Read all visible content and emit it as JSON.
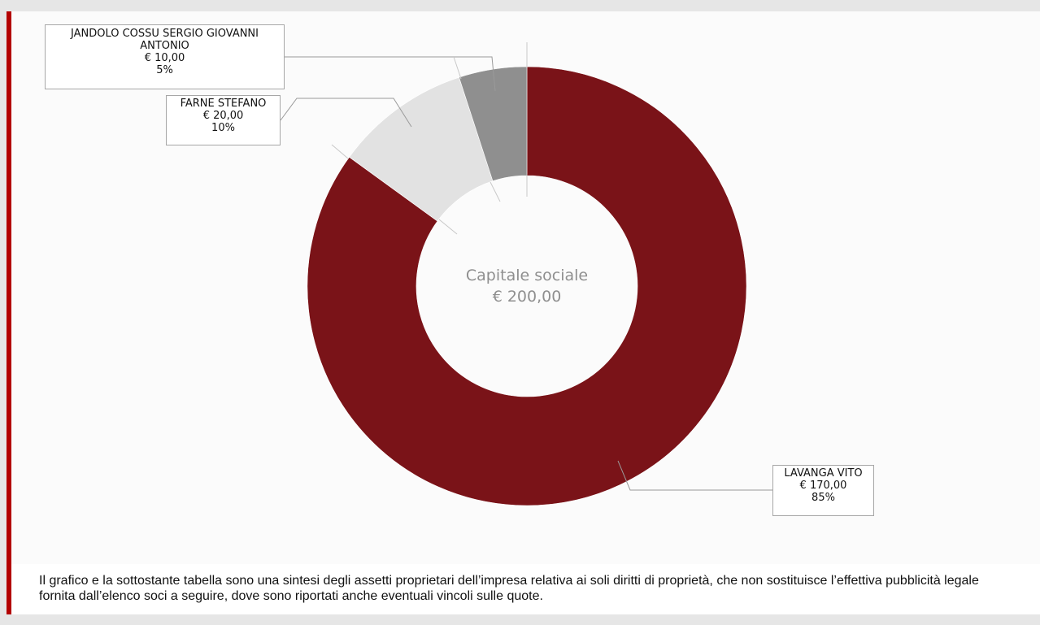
{
  "chart_data": {
    "type": "pie",
    "center_label": {
      "title": "Capitale sociale",
      "total": "€ 200,00"
    },
    "slices": [
      {
        "name": "LAVANGA VITO",
        "amount_text": "€ 170,00",
        "percent_text": "85%",
        "value": 170,
        "color": "#7a1318"
      },
      {
        "name": "FARNE STEFANO",
        "amount_text": "€ 20,00",
        "percent_text": "10%",
        "value": 20,
        "color": "#e2e2e2"
      },
      {
        "name": "JANDOLO COSSU SERGIO GIOVANNI ANTONIO",
        "amount_text": "€ 10,00",
        "percent_text": "5%",
        "value": 10,
        "color": "#8f8f8f"
      }
    ]
  },
  "disclaimer": "Il grafico e la sottostante tabella sono una sintesi degli assetti proprietari dell’impresa relativa ai soli diritti di proprietà, che non sostituisce l’effettiva pubblicità legale fornita dall’elenco soci a seguire, dove sono riportati anche eventuali vincoli sulle quote.",
  "colors": {
    "accent_bar": "#b30000",
    "panel_background": "#fbfbfb",
    "page_background": "#e6e6e6"
  }
}
